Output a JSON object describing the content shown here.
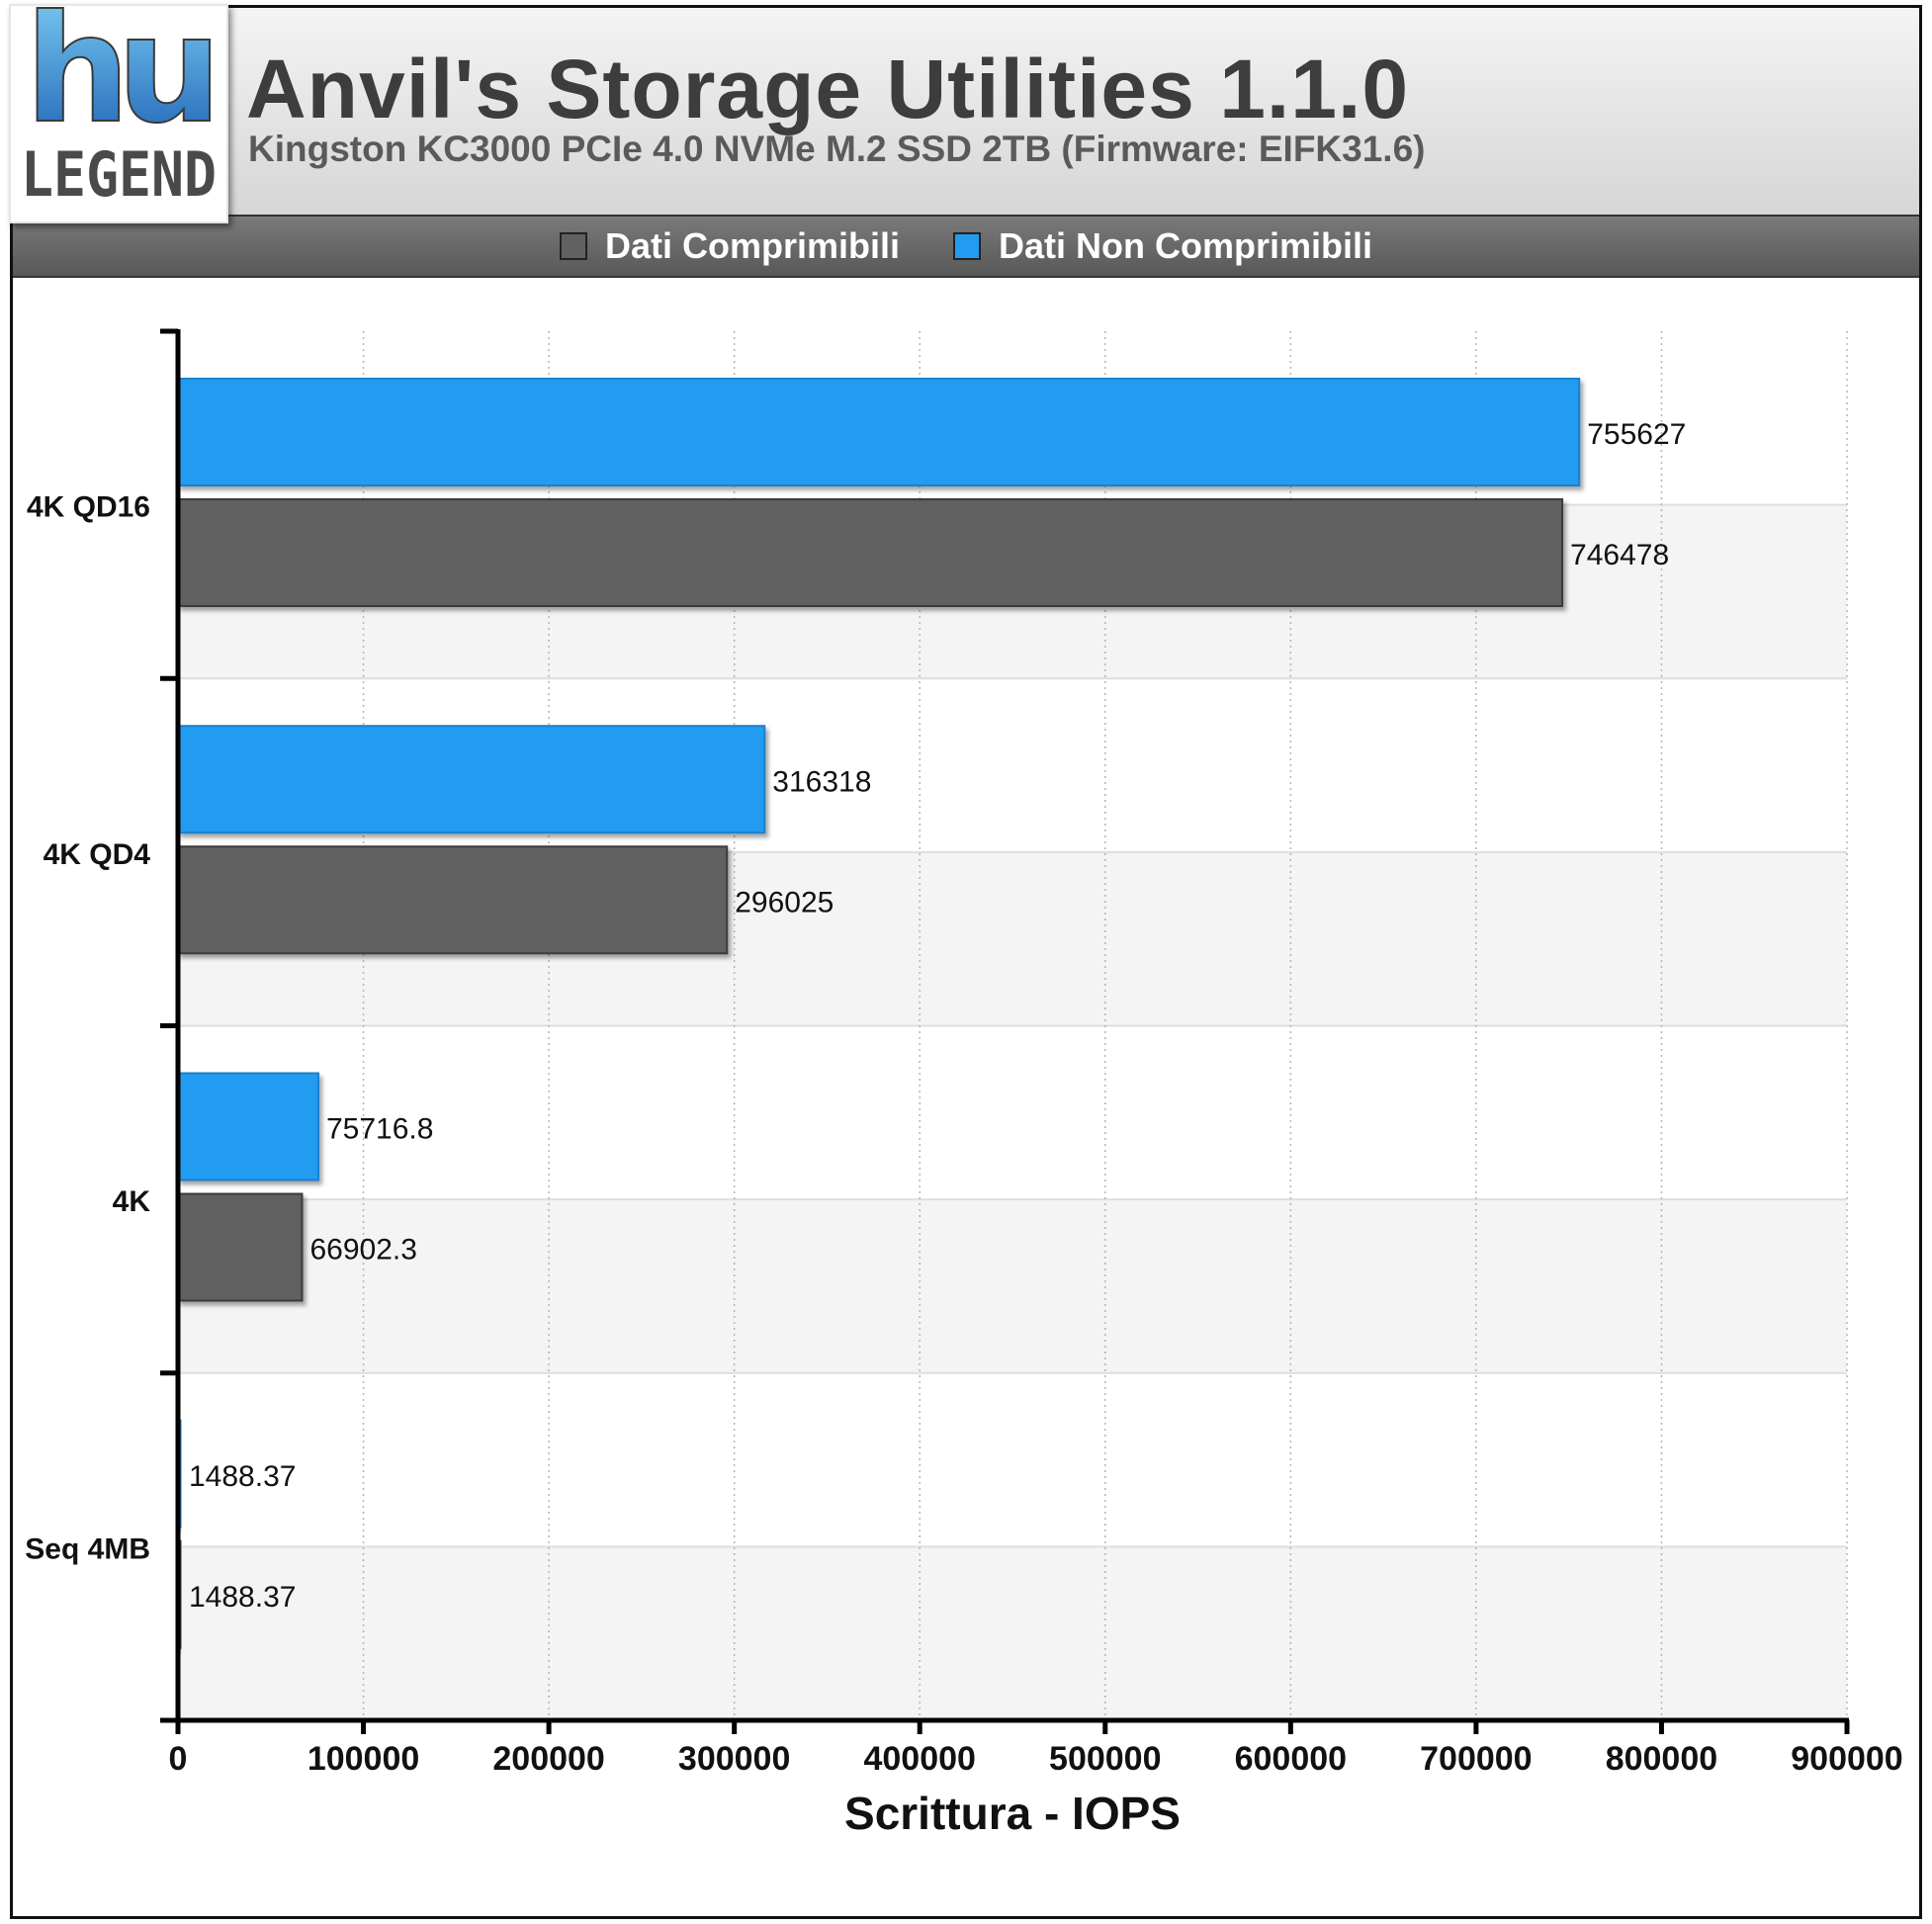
{
  "header": {
    "title": "Anvil's Storage Utilities 1.1.0",
    "subtitle": "Kingston KC3000 PCIe 4.0 NVMe M.2 SSD 2TB (Firmware: EIFK31.6)",
    "logo_text_top": "hu",
    "logo_text_bottom": "LEGEND"
  },
  "legend": [
    {
      "label": "Dati Comprimibili",
      "color": "#616161"
    },
    {
      "label": "Dati Non Comprimibili",
      "color": "#229cf0"
    }
  ],
  "colors": {
    "accent_blue": "#229cf0",
    "bar_gray": "#616161",
    "band_alt": "#f4f4f4"
  },
  "chart_data": {
    "type": "bar",
    "orientation": "horizontal",
    "categories": [
      "4K QD16",
      "4K QD4",
      "4K",
      "Seq 4MB"
    ],
    "series": [
      {
        "name": "Dati Non Comprimibili",
        "color": "#229cf0",
        "values": [
          755627,
          316318,
          75716.8,
          1488.37
        ],
        "labels": [
          "755627",
          "316318",
          "75716.8",
          "1488.37"
        ]
      },
      {
        "name": "Dati Comprimibili",
        "color": "#616161",
        "values": [
          746478,
          296025,
          66902.3,
          1488.37
        ],
        "labels": [
          "746478",
          "296025",
          "66902.3",
          "1488.37"
        ]
      }
    ],
    "xlim": [
      0,
      900000
    ],
    "xticks": [
      0,
      100000,
      200000,
      300000,
      400000,
      500000,
      600000,
      700000,
      800000,
      900000
    ],
    "xtick_labels": [
      "0",
      "100000",
      "200000",
      "300000",
      "400000",
      "500000",
      "600000",
      "700000",
      "800000",
      "900000"
    ],
    "xlabel": "Scrittura - IOPS",
    "ylabel": "",
    "grid": "vertical dotted",
    "legend_position": "top"
  }
}
